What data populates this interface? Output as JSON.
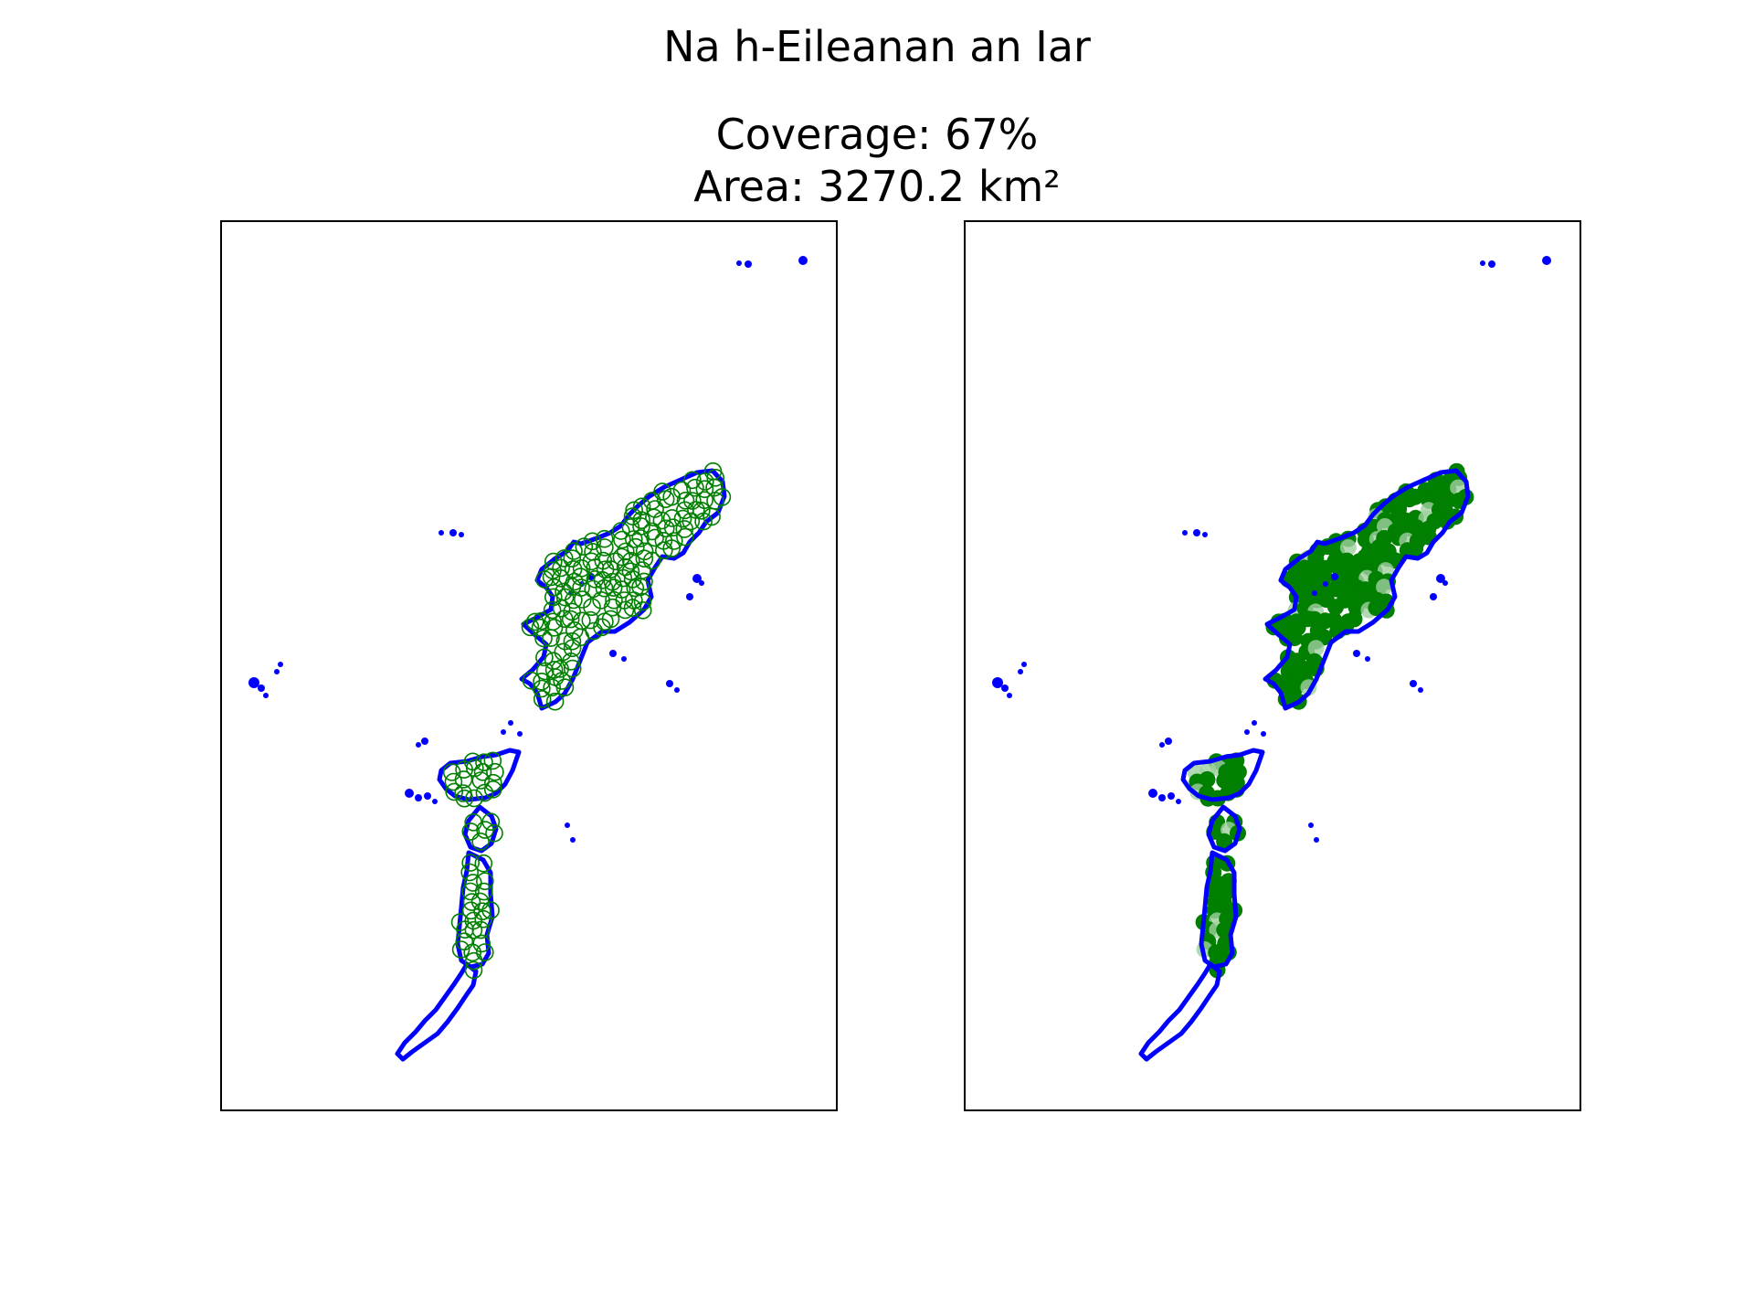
{
  "figure": {
    "title": "Na h-Eileanan an Iar",
    "coverage_text": "Coverage: 67%",
    "area_text": "Area: 3270.2 km²"
  },
  "map": {
    "coverage_percent": 67,
    "area_km2": 3270.2,
    "panels": [
      {
        "id": "left",
        "fill_style": "circle-outlines",
        "axes_ticks": false
      },
      {
        "id": "right",
        "fill_style": "solid",
        "axes_ticks": false
      }
    ],
    "colors": {
      "coastline": "#0000ff",
      "coverage": "#007f00",
      "coverage_light": "#9fcf9f",
      "frame": "#000000",
      "background": "#ffffff"
    }
  }
}
